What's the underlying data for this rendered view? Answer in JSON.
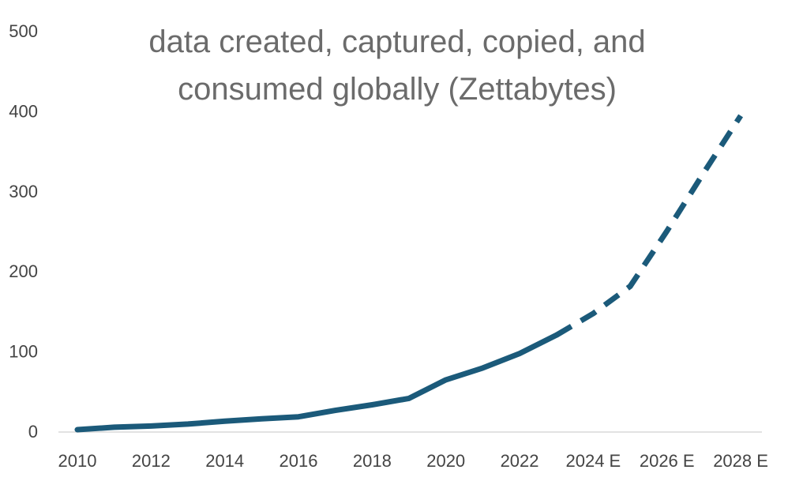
{
  "chart_data": {
    "type": "line",
    "title_lines": [
      "data created, captured, copied, and",
      "consumed globally (Zettabytes)"
    ],
    "xlabel": "",
    "ylabel": "",
    "x": [
      "2010",
      "2011",
      "2012",
      "2013",
      "2014",
      "2015",
      "2016",
      "2017",
      "2018",
      "2019",
      "2020",
      "2021",
      "2022",
      "2023",
      "2024 E",
      "2025 E",
      "2026 E",
      "2027 E",
      "2028 E"
    ],
    "x_tick_labels": [
      "2010",
      "2012",
      "2014",
      "2016",
      "2018",
      "2020",
      "2022",
      "2024 E",
      "2026 E",
      "2028 E"
    ],
    "ylim": [
      0,
      500
    ],
    "y_ticks": [
      0,
      100,
      200,
      300,
      400,
      500
    ],
    "grid": false,
    "legend": "none",
    "series": [
      {
        "values": [
          2,
          5,
          6.5,
          9,
          12.5,
          15.5,
          18,
          26,
          33,
          41,
          64.2,
          79,
          97,
          120,
          147,
          181,
          250,
          323,
          394
        ],
        "actual_through": "2023",
        "color": "#1b5a7a",
        "estimate_style": "dashed"
      }
    ]
  }
}
